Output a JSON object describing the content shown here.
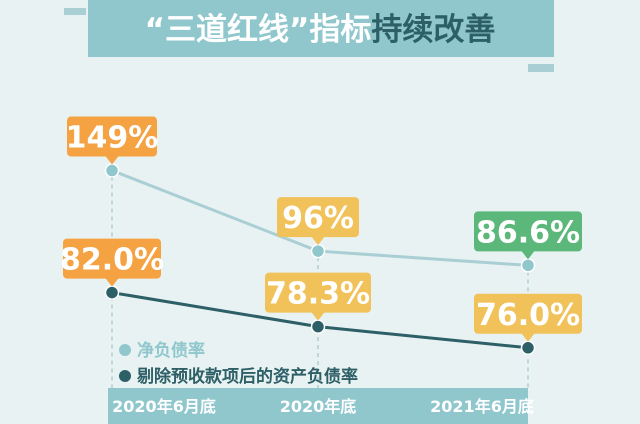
{
  "title": {
    "part1": "“三道红线”指标",
    "part2": "持续改善"
  },
  "colors": {
    "background": "#e9f2f3",
    "title_band": "#8fc7cd",
    "title_highlight": "#2d5f66",
    "title_normal": "#ffffff",
    "axis_band": "#8fc7cd",
    "series1_line": "#a9cfd4",
    "series1_point": "#8fc7cd",
    "series2_line": "#2d5f66",
    "series2_point": "#2d5f66",
    "label_orange": "#f5a242",
    "label_yellow": "#f2c25a",
    "label_green": "#5cb87a"
  },
  "chart_data": {
    "type": "line",
    "categories": [
      "2020年6月底",
      "2020年底",
      "2021年6月底"
    ],
    "series": [
      {
        "name": "净负债率",
        "values": [
          149,
          96,
          86.6
        ],
        "labels": [
          "149%",
          "96%",
          "86.6%"
        ]
      },
      {
        "name": "剔除预收款项后的资产负债率",
        "values": [
          82.0,
          78.3,
          76.0
        ],
        "labels": [
          "82.0%",
          "78.3%",
          "76.0%"
        ]
      }
    ],
    "legend_position": "bottom-left"
  }
}
